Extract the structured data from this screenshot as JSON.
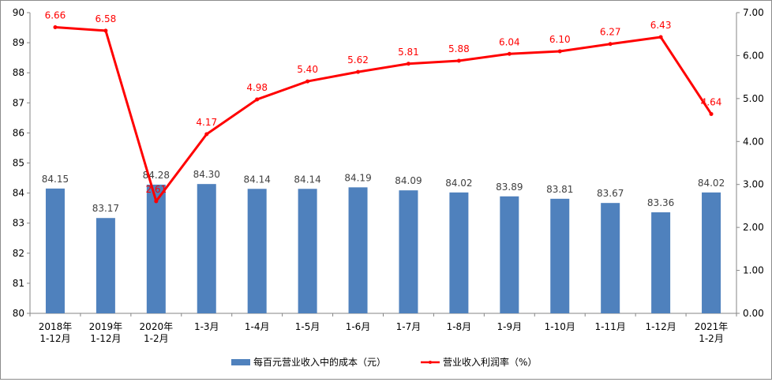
{
  "chart_data": {
    "type": "bar+line",
    "categories": [
      "2018年\n1-12月",
      "2019年\n1-12月",
      "2020年\n1-2月",
      "1-3月",
      "1-4月",
      "1-5月",
      "1-6月",
      "1-7月",
      "1-8月",
      "1-9月",
      "1-10月",
      "1-11月",
      "1-12月",
      "2021年\n1-2月"
    ],
    "series": [
      {
        "name": "每百元营业收入中的成本（元）",
        "type": "bar",
        "axis": "left",
        "color": "#4f81bd",
        "values": [
          84.15,
          83.17,
          84.28,
          84.3,
          84.14,
          84.14,
          84.19,
          84.09,
          84.02,
          83.89,
          83.81,
          83.67,
          83.36,
          84.02
        ],
        "labels": [
          "84.15",
          "83.17",
          "84.28",
          "84.30",
          "84.14",
          "84.14",
          "84.19",
          "84.09",
          "84.02",
          "83.89",
          "83.81",
          "83.67",
          "83.36",
          "84.02"
        ]
      },
      {
        "name": "营业收入利润率（%）",
        "type": "line",
        "axis": "right",
        "color": "#ff0000",
        "values": [
          6.66,
          6.58,
          2.61,
          4.17,
          4.98,
          5.4,
          5.62,
          5.81,
          5.88,
          6.04,
          6.1,
          6.27,
          6.43,
          4.64
        ],
        "labels": [
          "6.66",
          "6.58",
          "2.61",
          "4.17",
          "4.98",
          "5.40",
          "5.62",
          "5.81",
          "5.88",
          "6.04",
          "6.10",
          "6.27",
          "6.43",
          "4.64"
        ]
      }
    ],
    "y_left": {
      "min": 80,
      "max": 90,
      "ticks": [
        "80",
        "81",
        "82",
        "83",
        "84",
        "85",
        "86",
        "87",
        "88",
        "89",
        "90"
      ]
    },
    "y_right": {
      "min": 0,
      "max": 7,
      "ticks": [
        "0.00",
        "1.00",
        "2.00",
        "3.00",
        "4.00",
        "5.00",
        "6.00",
        "7.00"
      ]
    },
    "grid": false,
    "legend_position": "bottom"
  }
}
